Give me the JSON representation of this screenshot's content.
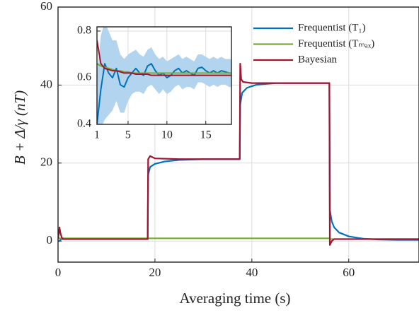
{
  "chart_data": [
    {
      "type": "line",
      "xlabel": "Averaging time (s)",
      "ylabel": "B + Δ/γ (nT)",
      "xlim": [
        0,
        74.5
      ],
      "ylim": [
        -5.4,
        60
      ],
      "xticks": [
        0,
        20,
        40,
        60
      ],
      "yticks": [
        0,
        20,
        40,
        60
      ],
      "grid": true,
      "legend": "upper right",
      "series": [
        {
          "name": "Frequentist (T₁)",
          "color": "#0072bd",
          "x": [
            0,
            0.3,
            0.6,
            1,
            18.5,
            18.6,
            19,
            20,
            22,
            25,
            30,
            37.5,
            37.6,
            38,
            39,
            41,
            45,
            56,
            56.1,
            56.5,
            57,
            58,
            60,
            63,
            66,
            70,
            74.5
          ],
          "values": [
            0,
            0,
            0.5,
            0.5,
            0.5,
            17,
            19,
            19.8,
            20.4,
            20.8,
            21,
            21,
            35,
            38,
            39.3,
            40.1,
            40.5,
            40.5,
            8,
            5,
            3.5,
            2.2,
            1.2,
            0.6,
            0.4,
            0.3,
            0.3
          ]
        },
        {
          "name": "Frequentist (Tₘₐₓ)",
          "color": "#77ac30",
          "x": [
            0,
            56,
            56.2,
            74.5
          ],
          "values": [
            0.7,
            0.7,
            0.5,
            0.5
          ]
        },
        {
          "name": "Bayesian",
          "color": "#a2142f",
          "x": [
            0,
            0.3,
            0.5,
            0.8,
            1.2,
            18.5,
            18.6,
            19,
            20,
            25,
            37.5,
            37.6,
            37.8,
            38.2,
            40,
            56,
            56.1,
            56.5,
            57,
            60,
            74.5
          ],
          "values": [
            0.5,
            3.5,
            2,
            0.8,
            0.5,
            0.5,
            21,
            21.8,
            21.2,
            21,
            21,
            45.5,
            41.5,
            40.8,
            40.5,
            40.5,
            -1,
            0,
            0.5,
            0.5,
            0.5
          ]
        }
      ]
    },
    {
      "type": "line",
      "xlim": [
        1,
        18.3
      ],
      "ylim": [
        0.4,
        0.818
      ],
      "xticks": [
        1,
        5,
        10,
        15
      ],
      "yticks": [
        0.4,
        0.6,
        0.8
      ],
      "grid": true,
      "band": {
        "color": "#b3d4ee",
        "x": [
          1,
          1.5,
          2,
          2.5,
          3,
          3.5,
          4,
          4.5,
          5,
          5.5,
          6,
          6.5,
          7,
          7.5,
          8,
          8.5,
          9,
          9.5,
          10,
          10.5,
          11,
          11.5,
          12,
          12.5,
          13,
          13.5,
          14,
          14.5,
          15,
          15.5,
          16,
          16.5,
          17,
          17.5,
          18,
          18.5
        ],
        "upper": [
          0.62,
          0.78,
          0.84,
          0.8,
          0.76,
          0.76,
          0.7,
          0.68,
          0.7,
          0.71,
          0.72,
          0.7,
          0.69,
          0.72,
          0.73,
          0.7,
          0.68,
          0.69,
          0.67,
          0.68,
          0.69,
          0.7,
          0.68,
          0.69,
          0.68,
          0.67,
          0.7,
          0.7,
          0.69,
          0.68,
          0.69,
          0.68,
          0.69,
          0.68,
          0.68,
          0.68
        ],
        "lower": [
          0.3,
          0.38,
          0.42,
          0.44,
          0.46,
          0.5,
          0.45,
          0.45,
          0.5,
          0.53,
          0.54,
          0.54,
          0.53,
          0.56,
          0.57,
          0.55,
          0.53,
          0.55,
          0.53,
          0.54,
          0.56,
          0.57,
          0.55,
          0.56,
          0.56,
          0.55,
          0.58,
          0.58,
          0.57,
          0.56,
          0.57,
          0.56,
          0.57,
          0.57,
          0.56,
          0.56
        ]
      },
      "series": [
        {
          "color": "#0072bd",
          "x": [
            1,
            1.5,
            2,
            2.5,
            3,
            3.5,
            4,
            4.5,
            5,
            5.5,
            6,
            6.5,
            7,
            7.5,
            8,
            8.5,
            9,
            9.5,
            10,
            10.5,
            11,
            11.5,
            12,
            12.5,
            13,
            13.5,
            14,
            14.5,
            15,
            15.5,
            16,
            16.5,
            17,
            17.5,
            18,
            18.5
          ],
          "values": [
            0.4,
            0.55,
            0.66,
            0.62,
            0.6,
            0.64,
            0.57,
            0.56,
            0.6,
            0.62,
            0.64,
            0.62,
            0.61,
            0.65,
            0.66,
            0.63,
            0.61,
            0.62,
            0.6,
            0.61,
            0.63,
            0.64,
            0.62,
            0.63,
            0.62,
            0.61,
            0.64,
            0.645,
            0.63,
            0.62,
            0.63,
            0.62,
            0.63,
            0.625,
            0.62,
            0.62
          ]
        },
        {
          "color": "#77ac30",
          "x": [
            1,
            1.5,
            2,
            2.5,
            3,
            3.5,
            4,
            4.5,
            5,
            5.5,
            6,
            6.5,
            7,
            7.5,
            8,
            8.5,
            9,
            9.5,
            10,
            10.5,
            11,
            11.5,
            12,
            12.5,
            13,
            13.5,
            14,
            14.5,
            15,
            15.5,
            16,
            16.5,
            17,
            17.5,
            18,
            18.5
          ],
          "values": [
            0.66,
            0.65,
            0.645,
            0.64,
            0.635,
            0.63,
            0.63,
            0.625,
            0.625,
            0.62,
            0.62,
            0.62,
            0.62,
            0.62,
            0.62,
            0.62,
            0.62,
            0.62,
            0.62,
            0.62,
            0.62,
            0.62,
            0.62,
            0.62,
            0.62,
            0.62,
            0.62,
            0.62,
            0.62,
            0.62,
            0.62,
            0.62,
            0.62,
            0.62,
            0.62,
            0.62
          ]
        },
        {
          "color": "#a2142f",
          "x": [
            1,
            1.5,
            2,
            2.5,
            3,
            3.5,
            4,
            4.5,
            5,
            5.5,
            6,
            6.5,
            7,
            7.5,
            8,
            8.5,
            9,
            9.5,
            10,
            10.5,
            11,
            11.5,
            12,
            12.5,
            13,
            13.5,
            14,
            14.5,
            15,
            15.5,
            16,
            16.5,
            17,
            17.5,
            18,
            18.5
          ],
          "values": [
            0.76,
            0.66,
            0.64,
            0.635,
            0.63,
            0.63,
            0.625,
            0.62,
            0.62,
            0.62,
            0.615,
            0.615,
            0.615,
            0.615,
            0.61,
            0.61,
            0.61,
            0.61,
            0.61,
            0.61,
            0.61,
            0.61,
            0.61,
            0.61,
            0.61,
            0.61,
            0.61,
            0.61,
            0.61,
            0.61,
            0.61,
            0.61,
            0.61,
            0.61,
            0.61,
            0.61
          ]
        }
      ]
    }
  ]
}
